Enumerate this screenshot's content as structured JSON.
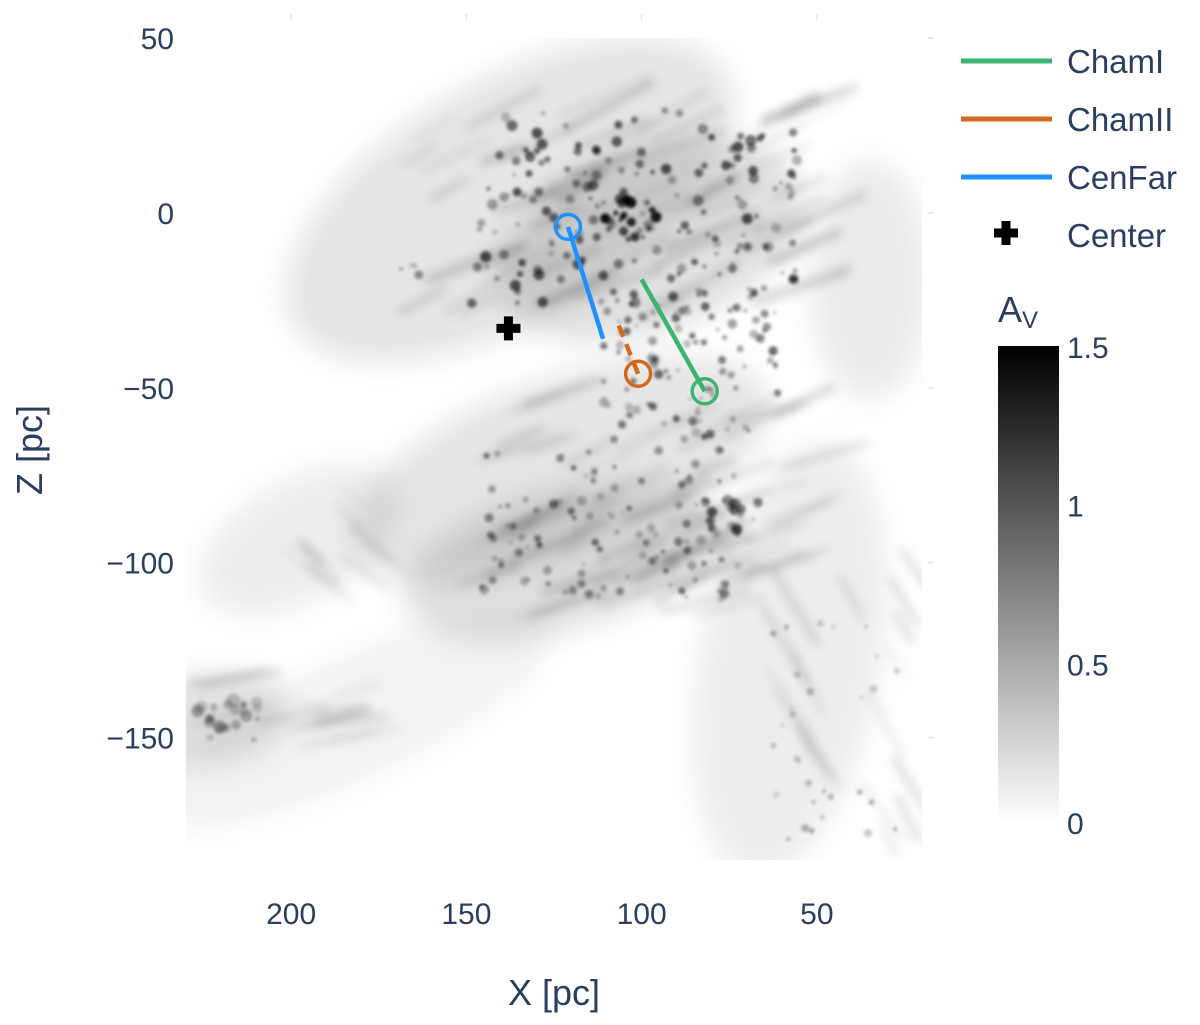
{
  "chart_data": {
    "type": "heatmap",
    "title": "",
    "xlabel": "X [pc]",
    "ylabel": "Z [pc]",
    "xlim": [
      230,
      20
    ],
    "ylim": [
      -185,
      50
    ],
    "x_axis_reversed": true,
    "x_ticks": [
      200,
      150,
      100,
      50
    ],
    "y_ticks": [
      50,
      0,
      -50,
      -100,
      -150
    ],
    "x_tick_labels": [
      "200",
      "150",
      "100",
      "50"
    ],
    "y_tick_labels": [
      "50",
      "0",
      "−50",
      "−100",
      "−150"
    ],
    "grid": false,
    "heatmap": {
      "quantity": "A_V extinction",
      "colorscale": [
        "#ffffff",
        "#000000"
      ],
      "zmin": 0,
      "zmax": 1.5
    },
    "colorbar": {
      "title_main": "A",
      "title_sub": "V",
      "ticks": [
        1.5,
        1,
        0.5,
        0
      ],
      "tick_labels": [
        "1.5",
        "1",
        "0.5",
        "0"
      ]
    },
    "legend_position": "right",
    "series": [
      {
        "name": "ChamI",
        "color": "#3cb371",
        "line_style": "solid",
        "x": [
          82,
          100
        ],
        "y": [
          -51,
          -19
        ],
        "marker": "open-circle",
        "marker_at": [
          82,
          -51
        ]
      },
      {
        "name": "ChamII",
        "color": "#d2691e",
        "line_style": "dash",
        "x": [
          101,
          107
        ],
        "y": [
          -46,
          -31
        ],
        "marker": "open-circle",
        "marker_at": [
          101,
          -46
        ]
      },
      {
        "name": "CenFar",
        "color": "#1e90ff",
        "line_style": "solid",
        "x": [
          121,
          111
        ],
        "y": [
          -4,
          -36
        ],
        "marker": "open-circle",
        "marker_at": [
          121,
          -4
        ]
      },
      {
        "name": "Center",
        "color": "#000000",
        "line_style": "none",
        "x": [
          138
        ],
        "y": [
          -33
        ],
        "marker": "cross"
      }
    ]
  }
}
